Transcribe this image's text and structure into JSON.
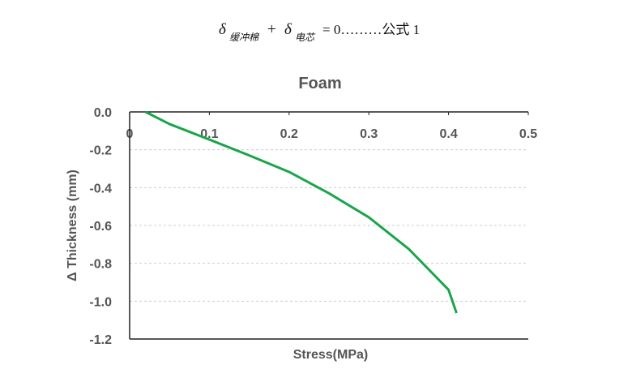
{
  "formula": [
    "δ",
    "缓冲棉",
    "+",
    "δ",
    "电芯",
    "= 0………公式 1"
  ],
  "chart_data": {
    "type": "line",
    "title": "Foam",
    "x_label": "Stress(MPa)",
    "y_label": "Δ Thickness (mm)",
    "x": [
      0.02,
      0.05,
      0.1,
      0.15,
      0.2,
      0.25,
      0.3,
      0.35,
      0.4,
      0.41
    ],
    "values": [
      0,
      -0.064,
      -0.146,
      -0.23,
      -0.317,
      -0.43,
      -0.557,
      -0.724,
      -0.94,
      -1.063
    ],
    "color": "#1aa54a",
    "xlim": [
      0,
      0.5
    ],
    "xticks": [
      0,
      0.1,
      0.2,
      0.3,
      0.4,
      0.5
    ],
    "ylim": [
      -1.2,
      0
    ],
    "yticks": [
      {
        "value": 0,
        "label": "0.0"
      },
      -0.2,
      -0.4,
      -0.6,
      -0.8,
      {
        "value": -1,
        "label": "-1.0"
      },
      -1.2
    ],
    "grid": true
  }
}
